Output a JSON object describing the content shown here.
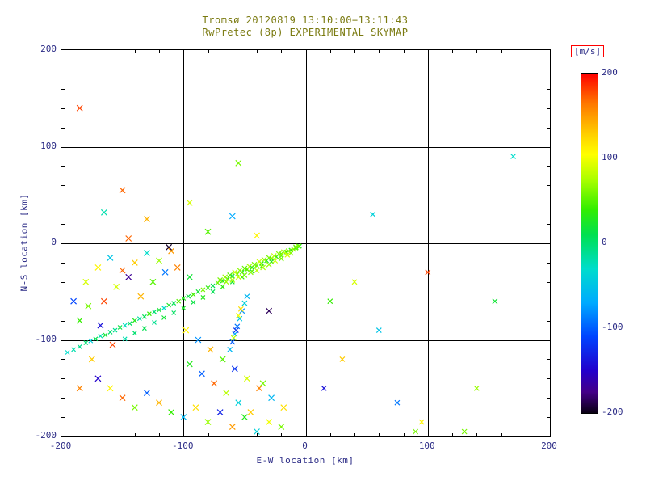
{
  "title": {
    "line1": "Tromsø 20120819 13:10:00−13:11:43",
    "line2": "RwPretec (8p) EXPERIMENTAL SKYMAP"
  },
  "axes": {
    "xlabel": "E-W location [km]",
    "ylabel": "N-S location [km]",
    "xlim": [
      -200,
      200
    ],
    "ylim": [
      -200,
      200
    ],
    "xticks": [
      -200,
      -100,
      0,
      100,
      200
    ],
    "yticks": [
      -200,
      -100,
      0,
      100,
      200
    ],
    "minor_tick_step": 20,
    "grid": true
  },
  "colorbar": {
    "label": "[m/s]",
    "ticks": [
      200,
      100,
      0,
      -100,
      -200
    ],
    "min": -200,
    "max": 200,
    "stops": [
      [
        200,
        "#ff0000"
      ],
      [
        165,
        "#ff7700"
      ],
      [
        130,
        "#ffcc00"
      ],
      [
        105,
        "#ffff00"
      ],
      [
        75,
        "#aaff00"
      ],
      [
        40,
        "#33ee00"
      ],
      [
        10,
        "#00e050"
      ],
      [
        -30,
        "#00ddcc"
      ],
      [
        -70,
        "#00aaff"
      ],
      [
        -110,
        "#0044ff"
      ],
      [
        -150,
        "#2200cc"
      ],
      [
        -175,
        "#440088"
      ],
      [
        -200,
        "#0a0014"
      ]
    ]
  },
  "colors": {
    "background": "#ffffff",
    "frame": "#000000",
    "grid": "#000000",
    "title": "#7a7a10",
    "axis_text": "#2a2a85",
    "colorbar_label_box": "#ff0000"
  },
  "chart_data": {
    "type": "scatter",
    "marker": "x",
    "title": "Tromsø 20120819 13:10:00−13:11:43 / RwPretec (8p) EXPERIMENTAL SKYMAP",
    "xlabel": "E-W location [km]",
    "ylabel": "N-S location [km]",
    "xlim": [
      -200,
      200
    ],
    "ylim": [
      -200,
      200
    ],
    "value_unit": "m/s",
    "value_range": [
      -200,
      200
    ],
    "legend_position": "right-colorbar",
    "groups": [
      {
        "name": "beam-a",
        "size": 2.5,
        "points": [
          [
            -195,
            -113,
            -30
          ],
          [
            -190,
            -110,
            -20
          ],
          [
            -185,
            -107,
            -10
          ],
          [
            -180,
            -103,
            0
          ],
          [
            -176,
            -101,
            -40
          ],
          [
            -172,
            -99,
            10
          ],
          [
            -168,
            -96,
            -20
          ],
          [
            -164,
            -95,
            20
          ],
          [
            -160,
            -92,
            0
          ],
          [
            -156,
            -90,
            -10
          ],
          [
            -152,
            -87,
            15
          ],
          [
            -148,
            -85,
            -25
          ],
          [
            -144,
            -83,
            5
          ],
          [
            -140,
            -80,
            30
          ],
          [
            -136,
            -78,
            -15
          ],
          [
            -132,
            -76,
            10
          ],
          [
            -128,
            -73,
            40
          ],
          [
            -124,
            -71,
            0
          ],
          [
            -120,
            -69,
            20
          ],
          [
            -116,
            -67,
            -30
          ],
          [
            -112,
            -64,
            25
          ],
          [
            -108,
            -62,
            10
          ],
          [
            -104,
            -60,
            50
          ],
          [
            -100,
            -57,
            30
          ],
          [
            -96,
            -55,
            15
          ],
          [
            -92,
            -53,
            45
          ],
          [
            -88,
            -50,
            20
          ],
          [
            -84,
            -48,
            60
          ],
          [
            -80,
            -46,
            35
          ],
          [
            -76,
            -44,
            10
          ],
          [
            -72,
            -41,
            55
          ],
          [
            -68,
            -39,
            25
          ],
          [
            -64,
            -37,
            40
          ],
          [
            -60,
            -34,
            15
          ],
          [
            -56,
            -32,
            60
          ],
          [
            -52,
            -30,
            30
          ],
          [
            -48,
            -27,
            45
          ],
          [
            -44,
            -25,
            20
          ],
          [
            -40,
            -23,
            55
          ],
          [
            -36,
            -21,
            35
          ],
          [
            -32,
            -18,
            25
          ],
          [
            -28,
            -16,
            45
          ],
          [
            -24,
            -14,
            30
          ],
          [
            -20,
            -11,
            50
          ],
          [
            -16,
            -9,
            40
          ],
          [
            -12,
            -7,
            35
          ],
          [
            -8,
            -5,
            45
          ],
          [
            -5,
            -3,
            30
          ]
        ]
      },
      {
        "name": "beam-b",
        "size": 2.5,
        "points": [
          [
            -148,
            -99,
            -20
          ],
          [
            -140,
            -93,
            0
          ],
          [
            -132,
            -88,
            10
          ],
          [
            -124,
            -82,
            -10
          ],
          [
            -116,
            -77,
            20
          ],
          [
            -108,
            -72,
            5
          ],
          [
            -100,
            -67,
            25
          ],
          [
            -92,
            -61,
            15
          ],
          [
            -84,
            -56,
            30
          ],
          [
            -76,
            -50,
            10
          ],
          [
            -68,
            -45,
            35
          ],
          [
            -60,
            -40,
            20
          ],
          [
            -52,
            -35,
            40
          ],
          [
            -44,
            -29,
            25
          ],
          [
            -36,
            -24,
            45
          ],
          [
            -28,
            -19,
            30
          ],
          [
            -20,
            -13,
            50
          ]
        ]
      },
      {
        "name": "near-origin-cluster",
        "size": 3,
        "points": [
          [
            -70,
            -38,
            60
          ],
          [
            -66,
            -35,
            70
          ],
          [
            -62,
            -33,
            50
          ],
          [
            -58,
            -30,
            80
          ],
          [
            -54,
            -28,
            65
          ],
          [
            -50,
            -26,
            55
          ],
          [
            -46,
            -24,
            75
          ],
          [
            -42,
            -22,
            60
          ],
          [
            -38,
            -19,
            85
          ],
          [
            -34,
            -17,
            70
          ],
          [
            -30,
            -15,
            60
          ],
          [
            -26,
            -13,
            80
          ],
          [
            -22,
            -11,
            65
          ],
          [
            -18,
            -9,
            75
          ],
          [
            -14,
            -8,
            60
          ],
          [
            -10,
            -6,
            70
          ],
          [
            -8,
            -4,
            55
          ],
          [
            -6,
            -3,
            65
          ],
          [
            -15,
            -12,
            90
          ],
          [
            -25,
            -18,
            85
          ],
          [
            -35,
            -25,
            75
          ],
          [
            -45,
            -30,
            65
          ],
          [
            -55,
            -35,
            85
          ],
          [
            -65,
            -40,
            70
          ],
          [
            -20,
            -16,
            60
          ],
          [
            -30,
            -22,
            70
          ],
          [
            -40,
            -28,
            80
          ],
          [
            -50,
            -33,
            60
          ],
          [
            -60,
            -38,
            75
          ],
          [
            -12,
            -10,
            65
          ]
        ]
      },
      {
        "name": "descending-string",
        "size": 3,
        "points": [
          [
            -48,
            -55,
            -60
          ],
          [
            -50,
            -62,
            -40
          ],
          [
            -52,
            -70,
            -80
          ],
          [
            -54,
            -78,
            -50
          ],
          [
            -56,
            -86,
            -90
          ],
          [
            -58,
            -94,
            -70
          ],
          [
            -60,
            -102,
            -100
          ],
          [
            -62,
            -110,
            -60
          ],
          [
            -55,
            -75,
            100
          ],
          [
            -53,
            -68,
            120
          ],
          [
            -57,
            -90,
            -120
          ],
          [
            -59,
            -98,
            80
          ]
        ]
      },
      {
        "name": "scattered-left",
        "size": 3.5,
        "points": [
          [
            -185,
            -150,
            160
          ],
          [
            -170,
            -140,
            -150
          ],
          [
            -160,
            -150,
            110
          ],
          [
            -150,
            -160,
            170
          ],
          [
            -140,
            -170,
            60
          ],
          [
            -130,
            -155,
            -100
          ],
          [
            -120,
            -165,
            140
          ],
          [
            -110,
            -175,
            40
          ],
          [
            -100,
            -180,
            -60
          ],
          [
            -90,
            -170,
            120
          ],
          [
            -80,
            -185,
            70
          ],
          [
            -70,
            -175,
            -130
          ],
          [
            -60,
            -190,
            150
          ],
          [
            -50,
            -180,
            30
          ],
          [
            -40,
            -195,
            -40
          ],
          [
            -30,
            -185,
            100
          ],
          [
            -20,
            -190,
            60
          ],
          [
            -175,
            -120,
            130
          ],
          [
            -165,
            -60,
            180
          ],
          [
            -155,
            -45,
            90
          ],
          [
            -145,
            -35,
            -170
          ],
          [
            -135,
            -55,
            140
          ],
          [
            -125,
            -40,
            50
          ],
          [
            -115,
            -30,
            -90
          ],
          [
            -105,
            -25,
            160
          ],
          [
            -95,
            -35,
            20
          ],
          [
            -170,
            -25,
            110
          ],
          [
            -160,
            -15,
            -50
          ],
          [
            -150,
            -28,
            170
          ],
          [
            -185,
            -80,
            40
          ],
          [
            -190,
            -60,
            -110
          ],
          [
            -180,
            -40,
            90
          ],
          [
            -140,
            -20,
            130
          ],
          [
            -130,
            -10,
            -30
          ],
          [
            -120,
            -18,
            70
          ],
          [
            -110,
            -8,
            150
          ],
          [
            -158,
            -105,
            180
          ],
          [
            -168,
            -85,
            -140
          ],
          [
            -178,
            -65,
            60
          ],
          [
            -98,
            -90,
            110
          ],
          [
            -88,
            -100,
            -80
          ],
          [
            -78,
            -110,
            140
          ],
          [
            -68,
            -120,
            50
          ],
          [
            -58,
            -130,
            -120
          ],
          [
            -48,
            -140,
            90
          ],
          [
            -38,
            -150,
            160
          ],
          [
            -28,
            -160,
            -60
          ],
          [
            -18,
            -170,
            120
          ],
          [
            -95,
            -125,
            30
          ],
          [
            -85,
            -135,
            -100
          ],
          [
            -75,
            -145,
            170
          ],
          [
            -65,
            -155,
            80
          ],
          [
            -55,
            -165,
            -40
          ],
          [
            -45,
            -175,
            130
          ],
          [
            -35,
            -145,
            60
          ],
          [
            -112,
            -4,
            -195
          ],
          [
            -30,
            -70,
            -185
          ]
        ]
      },
      {
        "name": "upper-points",
        "size": 3.5,
        "points": [
          [
            -55,
            83,
            60
          ],
          [
            -150,
            55,
            170
          ],
          [
            -130,
            25,
            140
          ],
          [
            -165,
            32,
            -20
          ],
          [
            -95,
            42,
            90
          ],
          [
            -185,
            140,
            180
          ],
          [
            -80,
            12,
            50
          ],
          [
            -60,
            28,
            -70
          ],
          [
            -40,
            8,
            110
          ],
          [
            -145,
            5,
            170
          ]
        ]
      },
      {
        "name": "right-points",
        "size": 3,
        "points": [
          [
            55,
            30,
            -40
          ],
          [
            100,
            -30,
            180
          ],
          [
            170,
            90,
            -30
          ],
          [
            90,
            -195,
            60
          ],
          [
            95,
            -185,
            110
          ],
          [
            140,
            -150,
            70
          ],
          [
            60,
            -90,
            -50
          ],
          [
            30,
            -120,
            130
          ],
          [
            20,
            -60,
            40
          ],
          [
            130,
            -195,
            60
          ],
          [
            75,
            -165,
            -90
          ],
          [
            40,
            -40,
            90
          ],
          [
            15,
            -150,
            -140
          ],
          [
            155,
            -60,
            20
          ]
        ]
      }
    ]
  }
}
